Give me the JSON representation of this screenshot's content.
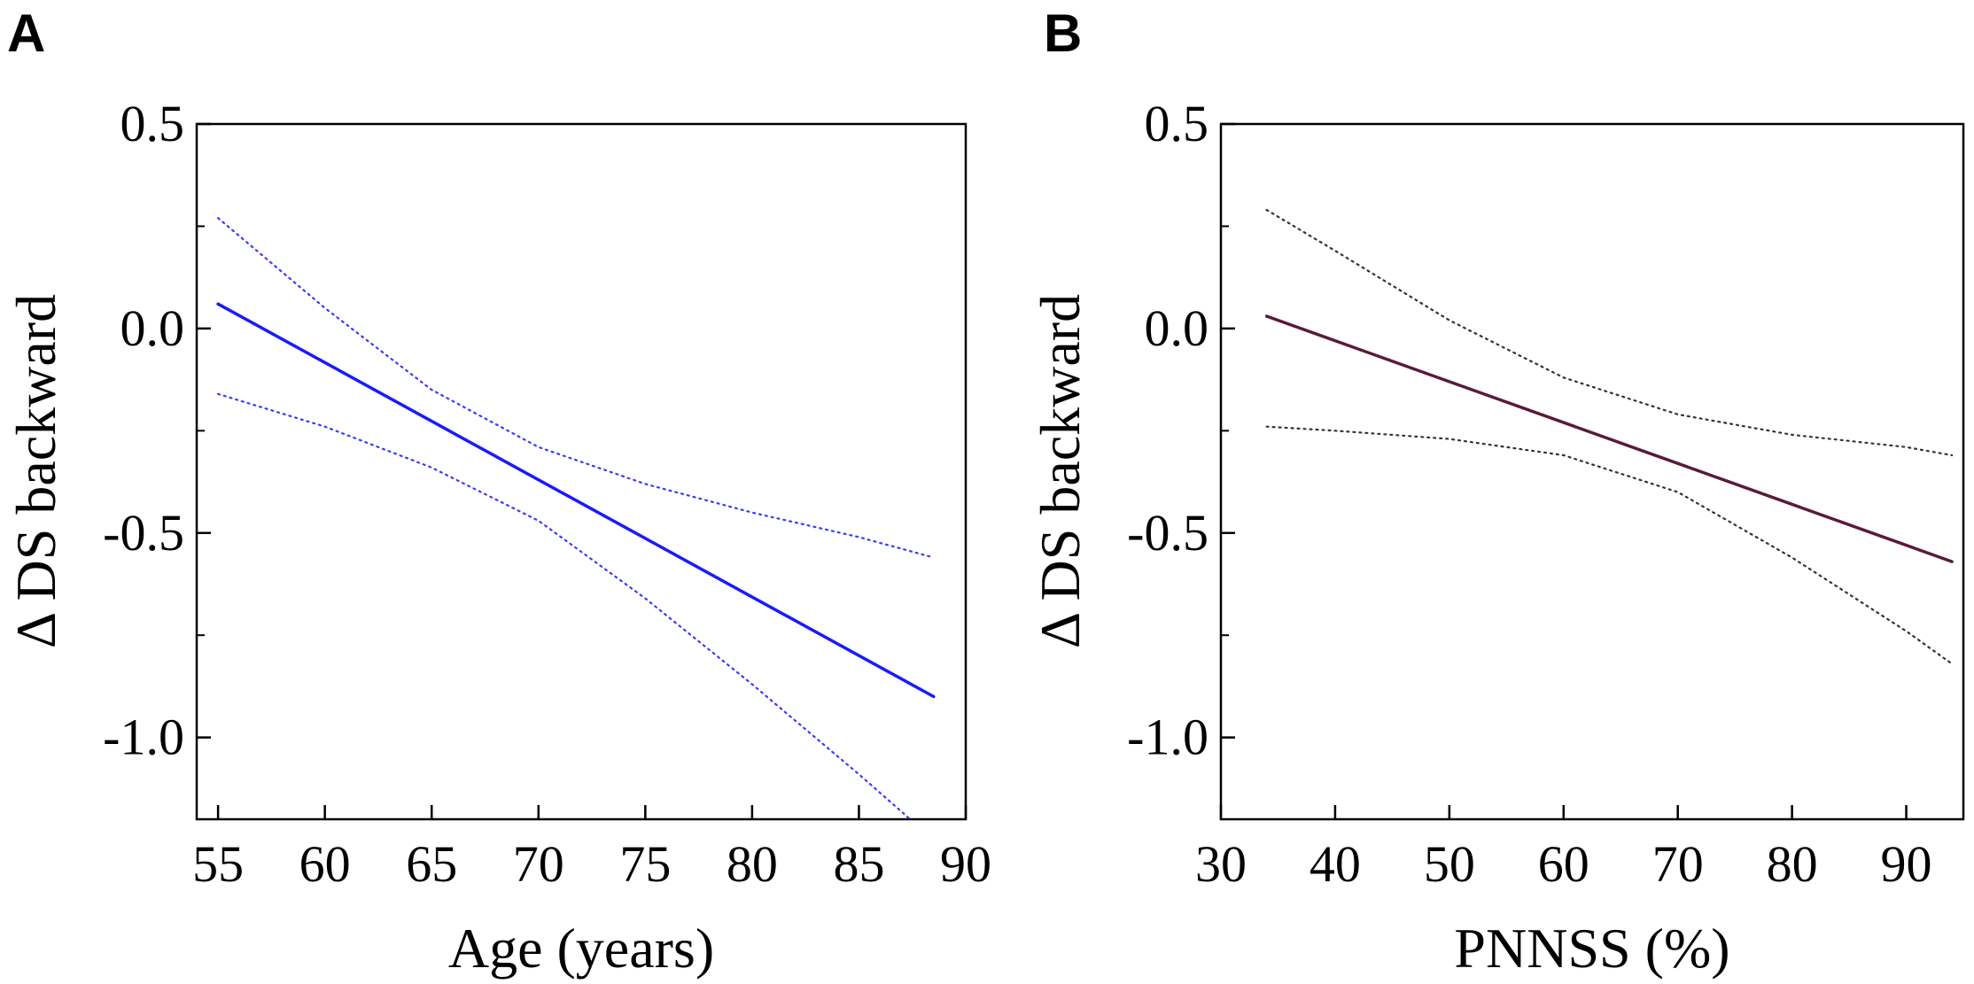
{
  "figure": {
    "panels": [
      "A",
      "B"
    ]
  },
  "chart_data": [
    {
      "type": "line",
      "panel": "A",
      "xlabel": "Age (years)",
      "ylabel": "Δ DS backward",
      "xlim": [
        54,
        90
      ],
      "ylim": [
        -1.2,
        0.5
      ],
      "xticks": [
        55,
        60,
        65,
        70,
        75,
        80,
        85,
        90
      ],
      "xtick_labels": [
        "55",
        "60",
        "65",
        "70",
        "75",
        "80",
        "85",
        "90"
      ],
      "yticks": [
        0.5,
        0.0,
        -0.5,
        -1.0
      ],
      "ytick_labels": [
        "0.5",
        "0.0",
        "-0.5",
        "-1.0"
      ],
      "series": [
        {
          "name": "fit",
          "style": "solid",
          "color": "#1a1aff",
          "x": [
            55,
            88.5
          ],
          "y": [
            0.06,
            -0.9
          ]
        },
        {
          "name": "upper 95% CI",
          "style": "dotted",
          "color": "#3a3aff",
          "x": [
            55,
            60,
            65,
            70,
            75,
            80,
            85,
            88.5
          ],
          "y": [
            0.27,
            0.05,
            -0.15,
            -0.29,
            -0.38,
            -0.45,
            -0.51,
            -0.56
          ]
        },
        {
          "name": "lower 95% CI",
          "style": "dotted",
          "color": "#3a3aff",
          "x": [
            55,
            60,
            65,
            70,
            75,
            80,
            85,
            87.4
          ],
          "y": [
            -0.16,
            -0.24,
            -0.34,
            -0.47,
            -0.66,
            -0.87,
            -1.09,
            -1.2
          ]
        }
      ]
    },
    {
      "type": "line",
      "panel": "B",
      "xlabel": "PNNSS (%)",
      "ylabel": "Δ DS backward",
      "xlim": [
        30,
        95
      ],
      "ylim": [
        -1.2,
        0.5
      ],
      "xticks": [
        30,
        40,
        50,
        60,
        70,
        80,
        90
      ],
      "xtick_labels": [
        "30",
        "40",
        "50",
        "60",
        "70",
        "80",
        "90"
      ],
      "yticks": [
        0.5,
        0.0,
        -0.5,
        -1.0
      ],
      "ytick_labels": [
        "0.5",
        "0.0",
        "-0.5",
        "-1.0"
      ],
      "series": [
        {
          "name": "fit",
          "style": "solid",
          "color": "#5a1a3a",
          "x": [
            34,
            94
          ],
          "y": [
            0.03,
            -0.57
          ]
        },
        {
          "name": "upper 95% CI",
          "style": "dotted",
          "color": "#333333",
          "x": [
            34,
            40,
            50,
            60,
            70,
            80,
            90,
            94
          ],
          "y": [
            0.29,
            0.19,
            0.02,
            -0.12,
            -0.21,
            -0.26,
            -0.29,
            -0.31
          ]
        },
        {
          "name": "lower 95% CI",
          "style": "dotted",
          "color": "#333333",
          "x": [
            34,
            40,
            50,
            60,
            70,
            80,
            90,
            94
          ],
          "y": [
            -0.24,
            -0.25,
            -0.27,
            -0.31,
            -0.4,
            -0.56,
            -0.74,
            -0.82
          ]
        }
      ]
    }
  ]
}
